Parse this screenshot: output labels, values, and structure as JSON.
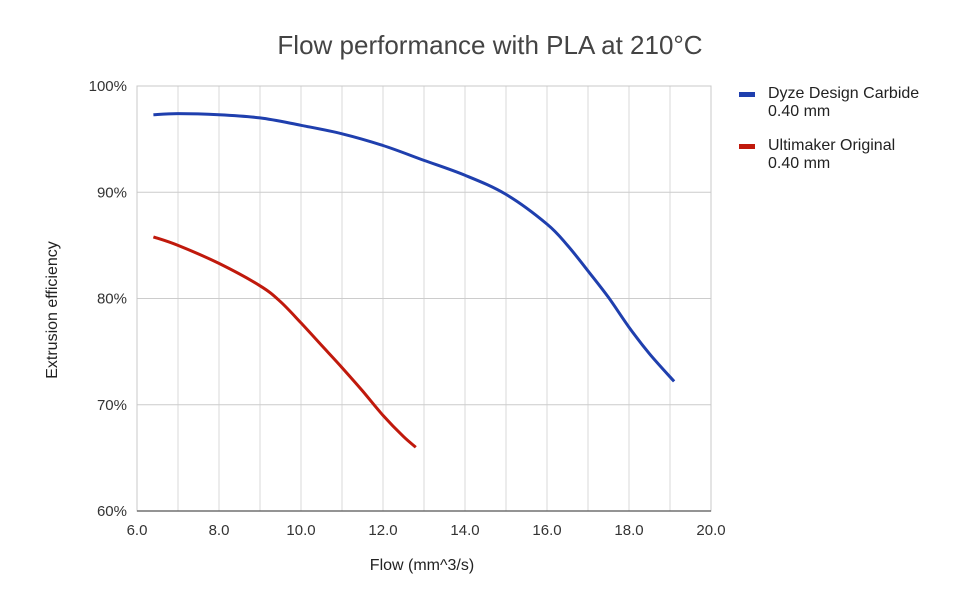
{
  "chart_data": {
    "type": "line",
    "title": "Flow performance with PLA at 210°C",
    "xlabel": "Flow (mm^3/s)",
    "ylabel": "Extrusion efficiency",
    "xlim": [
      6.0,
      20.0
    ],
    "ylim": [
      60,
      100
    ],
    "x_ticks": [
      6.0,
      8.0,
      10.0,
      12.0,
      14.0,
      16.0,
      18.0,
      20.0
    ],
    "x_tick_labels": [
      "6.0",
      "8.0",
      "10.0",
      "12.0",
      "14.0",
      "16.0",
      "18.0",
      "20.0"
    ],
    "y_ticks": [
      60,
      70,
      80,
      90,
      100
    ],
    "y_tick_labels": [
      "60%",
      "70%",
      "80%",
      "90%",
      "100%"
    ],
    "x_minor_grid_step": 1.0,
    "grid": true,
    "legend_position": "right",
    "series": [
      {
        "name": "Dyze Design Carbide",
        "name_line2": "0.40 mm",
        "color": "#1f3fae",
        "x": [
          6.4,
          7.0,
          8.0,
          9.0,
          10.0,
          11.0,
          12.0,
          13.0,
          14.0,
          15.0,
          16.0,
          16.5,
          17.0,
          17.5,
          18.0,
          18.5,
          19.1
        ],
        "y": [
          97.3,
          97.4,
          97.3,
          97.0,
          96.3,
          95.5,
          94.4,
          93.0,
          91.6,
          89.8,
          87.0,
          85.0,
          82.6,
          80.1,
          77.3,
          74.8,
          72.2
        ]
      },
      {
        "name": "Ultimaker Original",
        "name_line2": "0.40 mm",
        "color": "#c0190c",
        "x": [
          6.4,
          7.0,
          8.0,
          9.0,
          9.5,
          10.0,
          10.5,
          11.0,
          11.5,
          12.0,
          12.5,
          12.8
        ],
        "y": [
          85.8,
          85.0,
          83.3,
          81.2,
          79.7,
          77.7,
          75.6,
          73.5,
          71.3,
          69.0,
          67.0,
          66.0
        ]
      }
    ]
  }
}
